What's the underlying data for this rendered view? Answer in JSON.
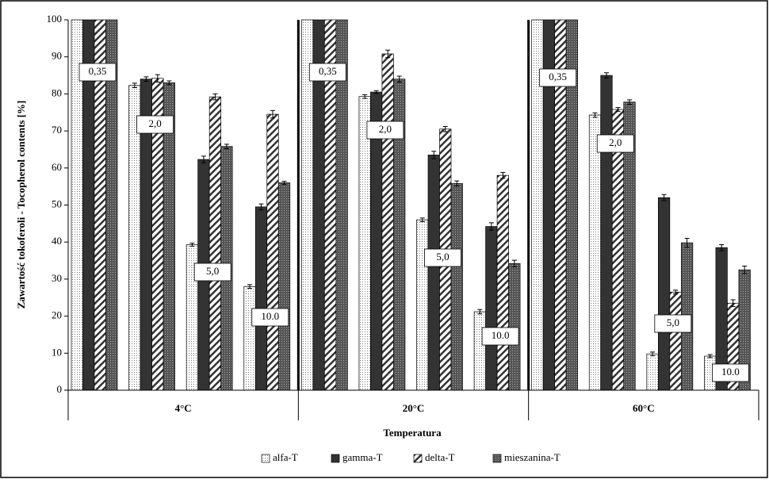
{
  "chart_data": {
    "type": "bar",
    "ylabel": "Zawartość tokoferoli - Tocopherol contents [%]",
    "xlabel": "Temperatura",
    "groups": [
      "4°C",
      "20°C",
      "60°C"
    ],
    "categories": [
      "0,35",
      "2,0",
      "5,0",
      "10.0",
      "0,35",
      "2,0",
      "5,0",
      "10.0",
      "0,35",
      "2,0",
      "5,0",
      "10.0"
    ],
    "ylim": [
      0,
      100
    ],
    "yticks": [
      0,
      10,
      20,
      30,
      40,
      50,
      60,
      70,
      80,
      90,
      100
    ],
    "grid": false,
    "legend": "bottom",
    "series": [
      {
        "name": "alfa-T",
        "color": "#ffffff",
        "pattern": "dots",
        "values": [
          100,
          82.3,
          39.3,
          28,
          100,
          79.3,
          46,
          21.2,
          100,
          74.3,
          9.8,
          9.2
        ],
        "errors": [
          0,
          0.6,
          0.4,
          0.5,
          0,
          0.5,
          0.5,
          0.6,
          0,
          0.6,
          0.5,
          0.4
        ]
      },
      {
        "name": "gamma-T",
        "color": "#333333",
        "pattern": "solid",
        "values": [
          100,
          84,
          62.3,
          49.5,
          100,
          80.5,
          63.5,
          44.2,
          100,
          85,
          52,
          38.5
        ],
        "errors": [
          0,
          0.6,
          0.9,
          0.8,
          0,
          0.4,
          1,
          1,
          0,
          0.7,
          0.8,
          0.8
        ]
      },
      {
        "name": "delta-T",
        "color": "#ffffff",
        "pattern": "hatch",
        "values": [
          100,
          84.2,
          79.2,
          74.5,
          100,
          90.8,
          70.5,
          58,
          100,
          75.8,
          26.5,
          23.5
        ],
        "errors": [
          0,
          1,
          0.8,
          1,
          0,
          1,
          0.7,
          0.8,
          0,
          0.5,
          0.5,
          0.9
        ]
      },
      {
        "name": "mieszanina-T",
        "color": "#555555",
        "pattern": "crosshatch",
        "values": [
          100,
          83,
          65.8,
          56,
          100,
          84,
          55.8,
          34.2,
          100,
          77.8,
          39.8,
          32.5
        ],
        "errors": [
          0,
          0.5,
          0.6,
          0.4,
          0,
          0.8,
          0.7,
          0.9,
          0,
          0.6,
          1.2,
          1
        ]
      }
    ]
  }
}
